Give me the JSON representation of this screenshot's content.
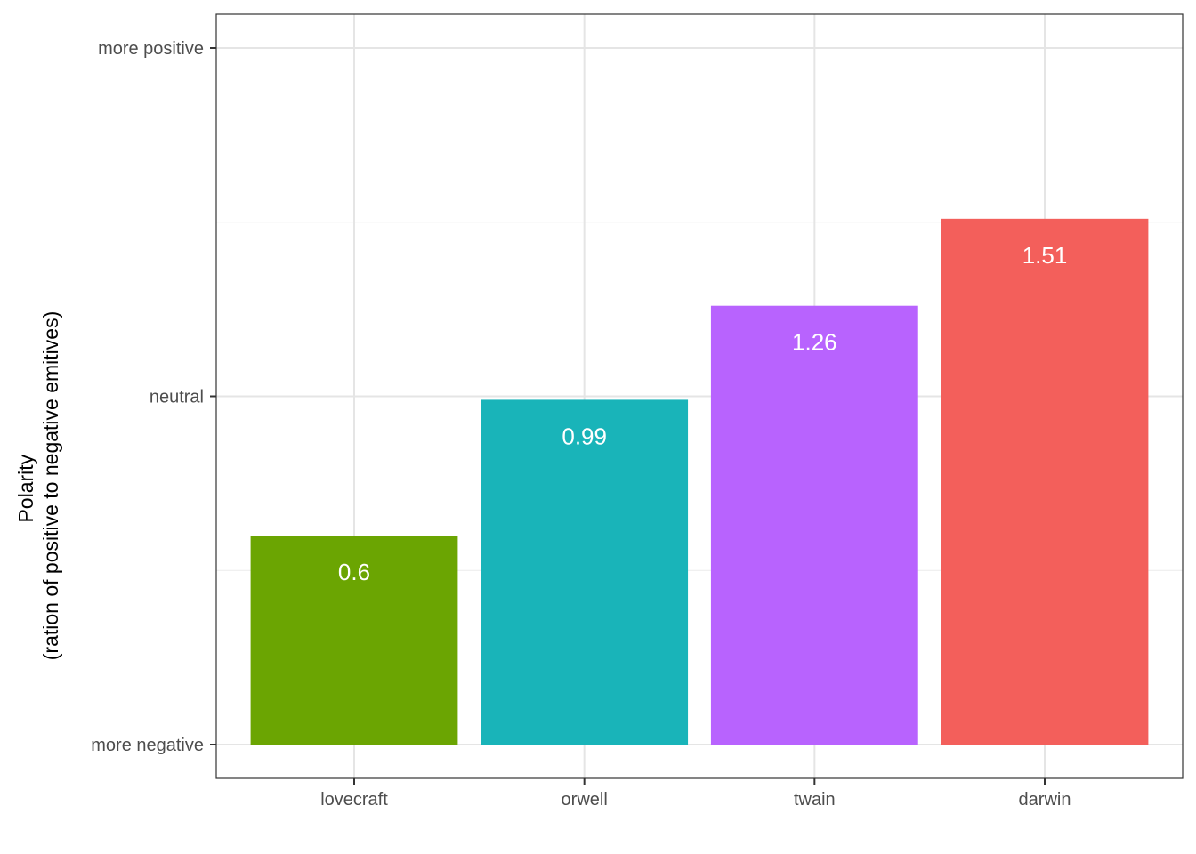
{
  "chart_data": {
    "type": "bar",
    "title": "",
    "xlabel": "",
    "ylabel_line1": "Polarity",
    "ylabel_line2": "(ration of positive to negative emitives)",
    "categories": [
      "lovecraft",
      "orwell",
      "twain",
      "darwin"
    ],
    "values": [
      0.6,
      0.99,
      1.26,
      1.51
    ],
    "data_labels": [
      "0.6",
      "0.99",
      "1.26",
      "1.51"
    ],
    "colors": [
      "#6BA502",
      "#19B4B9",
      "#B863FE",
      "#F35F5B"
    ],
    "ylim": [
      0,
      2
    ],
    "y_ticks": [
      {
        "value": 0,
        "label": "more negative"
      },
      {
        "value": 1,
        "label": "neutral"
      },
      {
        "value": 2,
        "label": "more positive"
      }
    ],
    "y_minor_grid": [
      0.5,
      1.5
    ],
    "grid": true,
    "legend": "none"
  }
}
